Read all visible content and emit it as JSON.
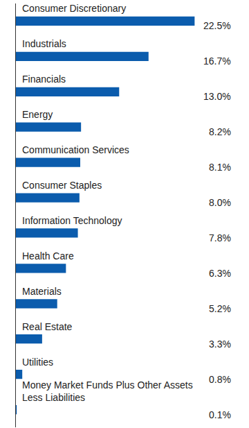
{
  "chart_data": {
    "type": "bar",
    "orientation": "horizontal",
    "categories": [
      "Consumer Discretionary",
      "Industrials",
      "Financials",
      "Energy",
      "Communication Services",
      "Consumer Staples",
      "Information Technology",
      "Health Care",
      "Materials",
      "Real Estate",
      "Utilities",
      "Money Market Funds Plus Other Assets Less Liabilities"
    ],
    "values": [
      22.5,
      16.7,
      13.0,
      8.2,
      8.1,
      8.0,
      7.8,
      6.3,
      5.2,
      3.3,
      0.8,
      0.1
    ],
    "value_labels": [
      "22.5%",
      "16.7%",
      "13.0%",
      "8.2%",
      "8.1%",
      "8.0%",
      "7.8%",
      "6.3%",
      "5.2%",
      "3.3%",
      "0.8%",
      "0.1%"
    ],
    "color": "#0b5cad",
    "xlim": [
      0,
      29
    ],
    "data_labels": true,
    "tick_labels": false,
    "grid": false
  }
}
